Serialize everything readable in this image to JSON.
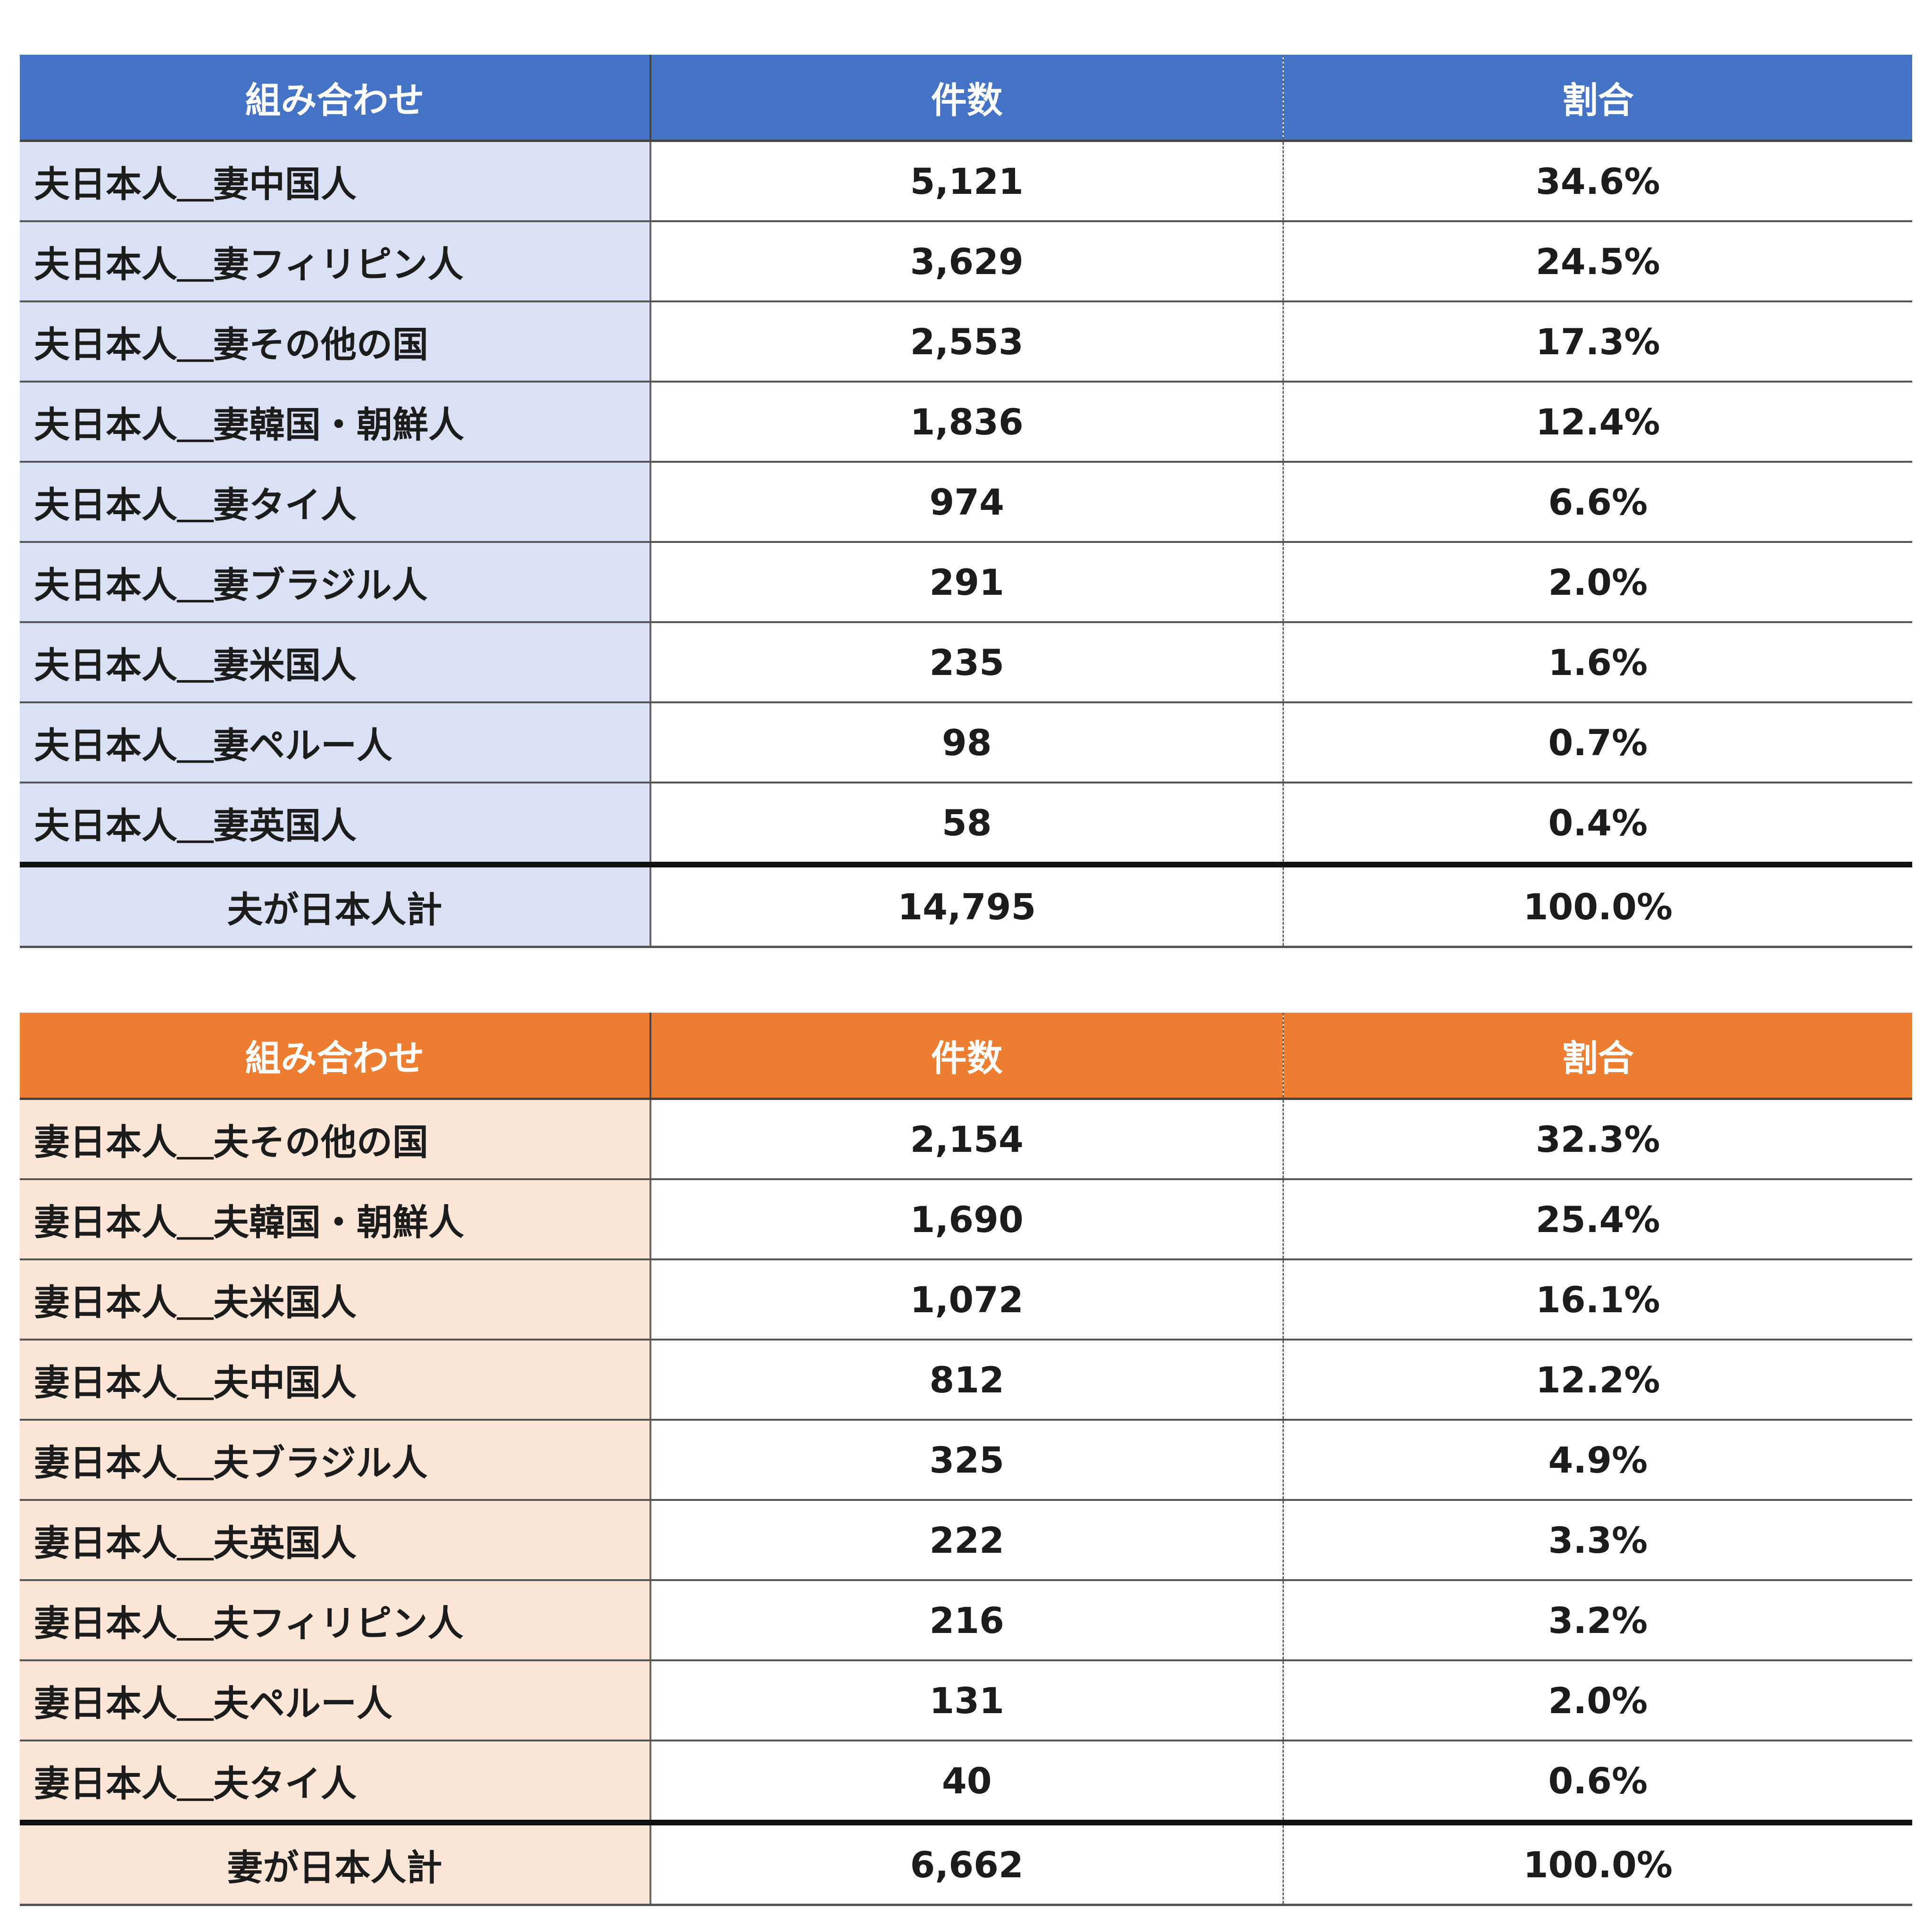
{
  "tables": [
    {
      "columns": [
        "組み合わせ",
        "件数",
        "割合"
      ],
      "rows": [
        [
          "夫日本人＿妻中国人",
          "5,121",
          "34.6%"
        ],
        [
          "夫日本人＿妻フィリピン人",
          "3,629",
          "24.5%"
        ],
        [
          "夫日本人＿妻その他の国",
          "2,553",
          "17.3%"
        ],
        [
          "夫日本人＿妻韓国・朝鮮人",
          "1,836",
          "12.4%"
        ],
        [
          "夫日本人＿妻タイ人",
          "974",
          "6.6%"
        ],
        [
          "夫日本人＿妻ブラジル人",
          "291",
          "2.0%"
        ],
        [
          "夫日本人＿妻米国人",
          "235",
          "1.6%"
        ],
        [
          "夫日本人＿妻ペルー人",
          "98",
          "0.7%"
        ],
        [
          "夫日本人＿妻英国人",
          "58",
          "0.4%"
        ]
      ],
      "total": [
        "夫が日本人計",
        "14,795",
        "100.0%"
      ]
    },
    {
      "columns": [
        "組み合わせ",
        "件数",
        "割合"
      ],
      "rows": [
        [
          "妻日本人＿夫その他の国",
          "2,154",
          "32.3%"
        ],
        [
          "妻日本人＿夫韓国・朝鮮人",
          "1,690",
          "25.4%"
        ],
        [
          "妻日本人＿夫米国人",
          "1,072",
          "16.1%"
        ],
        [
          "妻日本人＿夫中国人",
          "812",
          "12.2%"
        ],
        [
          "妻日本人＿夫ブラジル人",
          "325",
          "4.9%"
        ],
        [
          "妻日本人＿夫英国人",
          "222",
          "3.3%"
        ],
        [
          "妻日本人＿夫フィリピン人",
          "216",
          "3.2%"
        ],
        [
          "妻日本人＿夫ペルー人",
          "131",
          "2.0%"
        ],
        [
          "妻日本人＿夫タイ人",
          "40",
          "0.6%"
        ]
      ],
      "total": [
        "妻が日本人計",
        "6,662",
        "100.0%"
      ]
    }
  ],
  "colors": {
    "husband_header": "#4472c4",
    "husband_name_cell": "#dae1f4",
    "wife_header": "#ed7d31",
    "wife_name_cell": "#fbe5d6"
  }
}
